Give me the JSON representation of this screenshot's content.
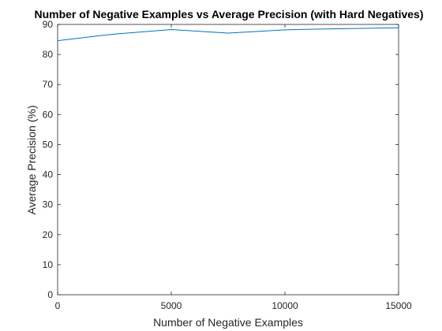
{
  "chart_data": {
    "type": "line",
    "title": "Number of Negative Examples vs Average Precision (with Hard Negatives)",
    "xlabel": "Number of Negative Examples",
    "ylabel": "Average Precision (%)",
    "xlim": [
      0,
      15000
    ],
    "ylim": [
      0,
      90
    ],
    "xticks": [
      0,
      5000,
      10000,
      15000
    ],
    "yticks": [
      0,
      10,
      20,
      30,
      40,
      50,
      60,
      70,
      80,
      90
    ],
    "grid": false,
    "series": [
      {
        "color": "#0072BD",
        "x": [
          0,
          2500,
          5000,
          7500,
          10000,
          12500,
          15000
        ],
        "y": [
          84.6,
          86.8,
          88.3,
          87.1,
          88.2,
          88.6,
          88.9
        ]
      }
    ]
  }
}
